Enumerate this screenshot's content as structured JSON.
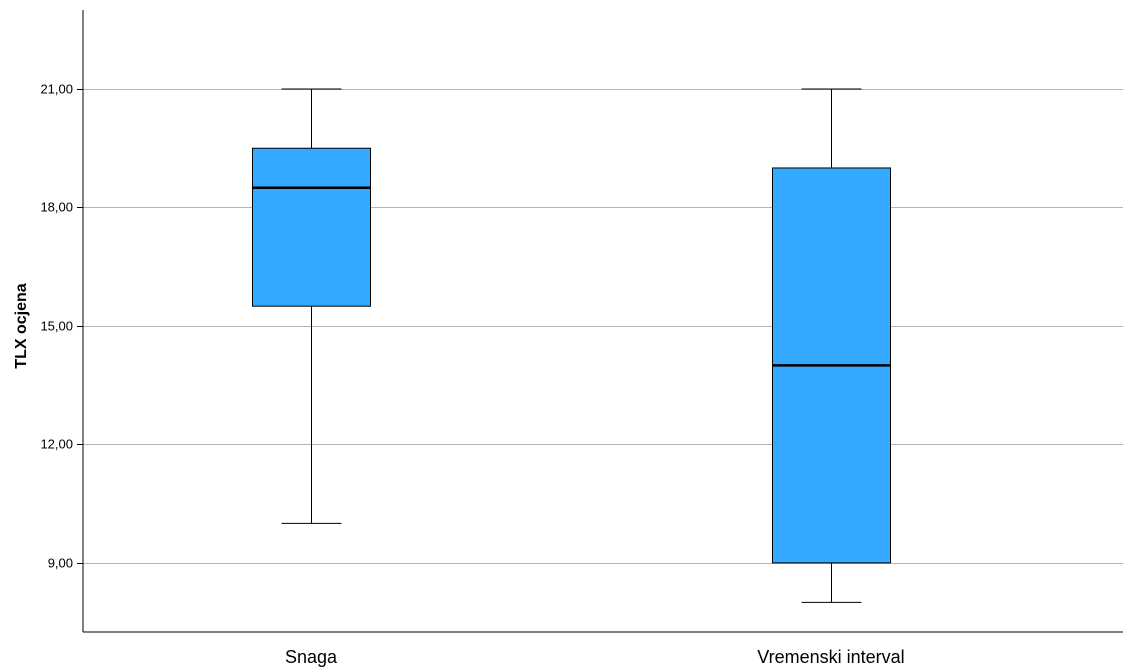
{
  "chart_data": {
    "type": "boxplot",
    "title": "",
    "xlabel": "",
    "ylabel": "TLX ocjena",
    "ylim": [
      7.25,
      23.0
    ],
    "yticks": [
      9,
      12,
      15,
      18,
      21
    ],
    "ytick_labels": [
      "9,00",
      "12,00",
      "15,00",
      "18,00",
      "21,00"
    ],
    "grid": true,
    "categories": [
      "Snaga",
      "Vremenski interval"
    ],
    "boxes": [
      {
        "category": "Snaga",
        "whisker_low": 10.0,
        "q1": 15.5,
        "median": 18.5,
        "q3": 19.5,
        "whisker_high": 21.0
      },
      {
        "category": "Vremenski interval",
        "whisker_low": 8.0,
        "q1": 9.0,
        "median": 14.0,
        "q3": 19.0,
        "whisker_high": 21.0
      }
    ],
    "colors": {
      "box_fill": "#33aaff",
      "box_stroke": "#000000",
      "grid": "#b3b3b3",
      "axis": "#000000"
    }
  }
}
